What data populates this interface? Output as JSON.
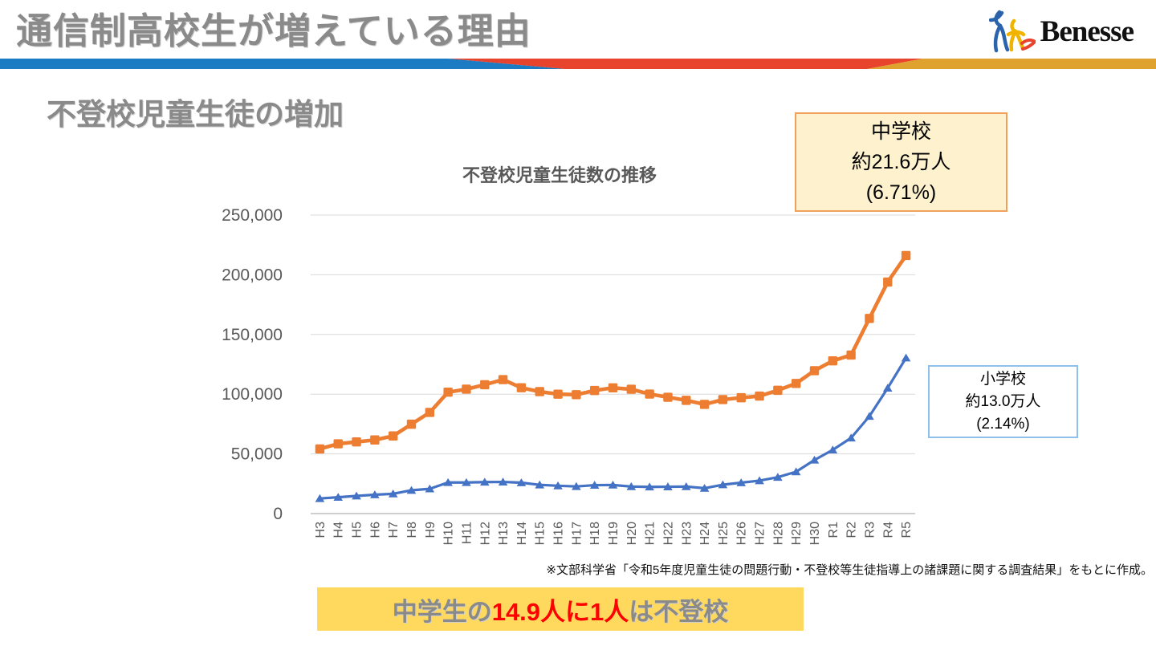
{
  "header": {
    "title": "通信制高校生が増えている理由",
    "logo_text": "Benesse"
  },
  "section": {
    "title": "不登校児童生徒の増加"
  },
  "callouts": {
    "junior_high": {
      "line1": "中学校",
      "line2": "約21.6万人",
      "line3": "(6.71%)"
    },
    "elementary": {
      "line1": "小学校",
      "line2": "約13.0万人",
      "line3": "(2.14%)"
    }
  },
  "source_note": "※文部科学省「令和5年度児童生徒の問題行動・不登校等生徒指導上の諸課題に関する調査結果」をもとに作成。",
  "banner": {
    "prefix": "中学生の",
    "highlight": "14.9人に1人",
    "suffix": "は不登校"
  },
  "colors": {
    "title_gray": "#8A8A8A",
    "divider_blue": "#1B7CC4",
    "divider_red": "#E8432C",
    "divider_gold": "#E0A22E",
    "banner_bg": "#FFD95E",
    "banner_text_gray": "#8A8A8A",
    "banner_text_red": "#FF0000",
    "jh_box_bg": "#FDF1CE",
    "jh_box_border": "#EFA15D",
    "el_box_border": "#8FC0E9",
    "grid_line": "#D9D9D9",
    "axis_line": "#BFBFBF",
    "tick_text": "#595959",
    "chart_title_text": "#595959",
    "logo_blue": "#2B63AD",
    "logo_yellow": "#F0B400",
    "logo_red": "#E8432C"
  },
  "chart_data": {
    "type": "line",
    "title": "不登校児童生徒数の推移",
    "xlabel": "",
    "ylabel": "",
    "ylim": [
      0,
      250000
    ],
    "ytick_step": 50000,
    "grid": "horizontal",
    "legend": "none",
    "categories": [
      "H3",
      "H4",
      "H5",
      "H6",
      "H7",
      "H8",
      "H9",
      "H10",
      "H11",
      "H12",
      "H13",
      "H14",
      "H15",
      "H16",
      "H17",
      "H18",
      "H19",
      "H20",
      "H21",
      "H22",
      "H23",
      "H24",
      "H25",
      "H26",
      "H27",
      "H28",
      "H29",
      "H30",
      "R1",
      "R2",
      "R3",
      "R4",
      "R5"
    ],
    "series": [
      {
        "name": "中学校",
        "color": "#ED7D31",
        "marker": "square",
        "values": [
          54172,
          58421,
          60039,
          61663,
          65022,
          74853,
          84701,
          101675,
          104180,
          107913,
          112211,
          105383,
          102149,
          100040,
          99578,
          103069,
          105328,
          104153,
          100105,
          97428,
          94836,
          91446,
          95442,
          97033,
          98408,
          103235,
          108999,
          119687,
          127922,
          132777,
          163442,
          193936,
          216112
        ]
      },
      {
        "name": "小学校",
        "color": "#4472C4",
        "marker": "triangle",
        "values": [
          12645,
          13710,
          14769,
          15786,
          16569,
          19498,
          20765,
          26017,
          26047,
          26373,
          26511,
          25869,
          24077,
          23318,
          22709,
          23825,
          23927,
          22652,
          22327,
          22463,
          22622,
          21243,
          24175,
          25864,
          27583,
          30448,
          35032,
          44841,
          53350,
          63350,
          81498,
          105112,
          130370
        ]
      }
    ]
  }
}
